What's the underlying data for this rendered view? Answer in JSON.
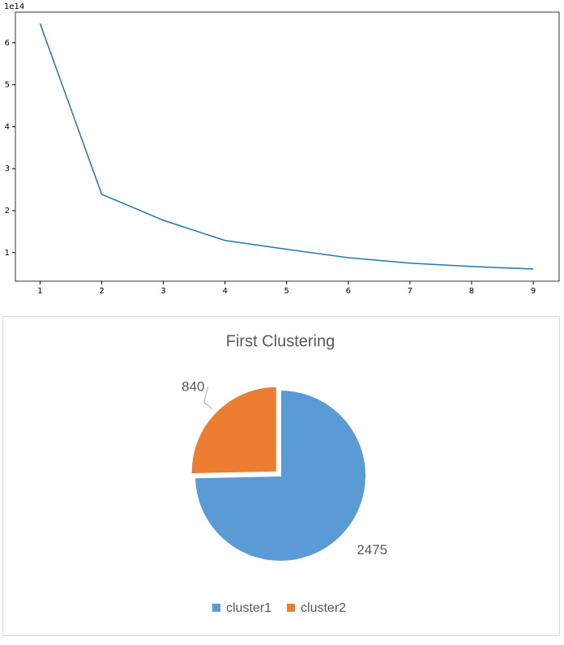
{
  "chart_data": [
    {
      "type": "line",
      "offset_text": "1e14",
      "x": [
        1,
        2,
        3,
        4,
        5,
        6,
        7,
        8,
        9
      ],
      "series": [
        {
          "color": "#1f77b4",
          "values": [
            6.46,
            2.39,
            1.77,
            1.29,
            1.08,
            0.88,
            0.75,
            0.67,
            0.61
          ]
        }
      ],
      "xlim": [
        0.6,
        9.42
      ],
      "ylim": [
        0.32,
        6.73
      ],
      "xticks": [
        1,
        2,
        3,
        4,
        5,
        6,
        7,
        8,
        9
      ],
      "yticks": [
        1,
        2,
        3,
        4,
        5,
        6
      ]
    },
    {
      "type": "pie",
      "title": "First Clustering",
      "categories": [
        "cluster1",
        "cluster2"
      ],
      "values": [
        2475,
        840
      ],
      "colors": [
        "#5b9bd5",
        "#ed7d31"
      ],
      "legend": "bottom"
    }
  ]
}
